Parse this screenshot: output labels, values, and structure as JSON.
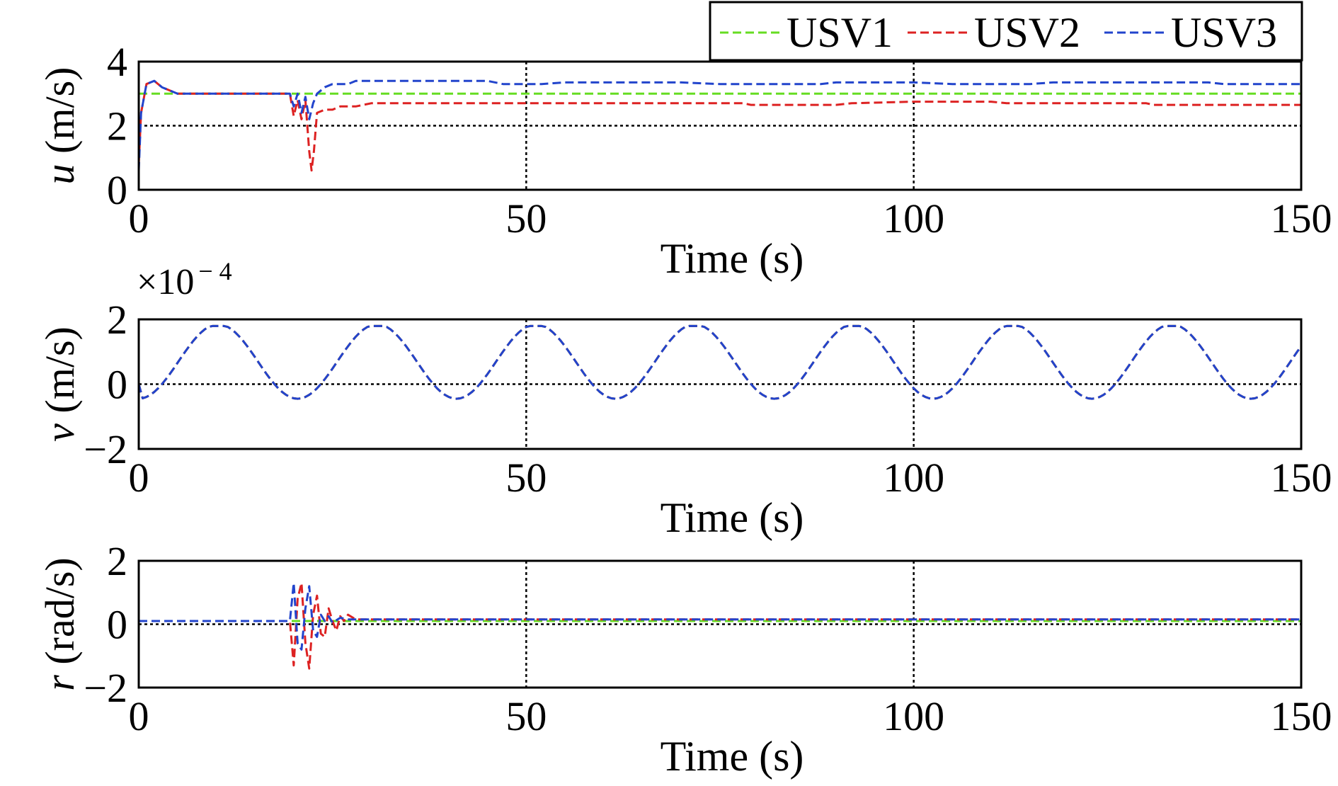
{
  "legend": {
    "placement": "top-right",
    "entries": [
      {
        "name": "USV1",
        "color": "#66dd22"
      },
      {
        "name": "USV2",
        "color": "#dd2222"
      },
      {
        "name": "USV3",
        "color": "#2244cc"
      }
    ]
  },
  "chart_data": [
    {
      "type": "line",
      "ylabel_symbol": "u",
      "ylabel_unit": "(m/s)",
      "xlabel": "Time (s)",
      "xlim": [
        0,
        150
      ],
      "ylim": [
        0,
        4
      ],
      "xticks": [
        "0",
        "50",
        "100",
        "150"
      ],
      "yticks": [
        "0",
        "2",
        "4"
      ],
      "reference_y": 2,
      "grid_x": [
        50,
        100
      ],
      "series": [
        {
          "name": "USV1",
          "color": "#66dd22",
          "points": [
            [
              0,
              3
            ],
            [
              150,
              3
            ]
          ]
        },
        {
          "name": "USV2",
          "color": "#dd2222",
          "points": [
            [
              0,
              0.8
            ],
            [
              0.3,
              2.4
            ],
            [
              1,
              3.3
            ],
            [
              2,
              3.4
            ],
            [
              3,
              3.2
            ],
            [
              5,
              3
            ],
            [
              19.5,
              3
            ],
            [
              20,
              2.3
            ],
            [
              20.5,
              2.8
            ],
            [
              21,
              2.2
            ],
            [
              21.5,
              2.8
            ],
            [
              22,
              1.2
            ],
            [
              22.3,
              0.6
            ],
            [
              22.6,
              1.2
            ],
            [
              23,
              2.4
            ],
            [
              24,
              2.5
            ],
            [
              25,
              2.5
            ],
            [
              26,
              2.6
            ],
            [
              28,
              2.6
            ],
            [
              30,
              2.7
            ],
            [
              50,
              2.7
            ],
            [
              52,
              2.7
            ],
            [
              70,
              2.7
            ],
            [
              78,
              2.7
            ],
            [
              79,
              2.65
            ],
            [
              90,
              2.65
            ],
            [
              92,
              2.7
            ],
            [
              100,
              2.75
            ],
            [
              110,
              2.75
            ],
            [
              112,
              2.7
            ],
            [
              130,
              2.7
            ],
            [
              131,
              2.65
            ],
            [
              150,
              2.65
            ]
          ]
        },
        {
          "name": "USV3",
          "color": "#2244cc",
          "points": [
            [
              0,
              0.6
            ],
            [
              0.3,
              2.4
            ],
            [
              1,
              3.3
            ],
            [
              2,
              3.4
            ],
            [
              3,
              3.2
            ],
            [
              5,
              3
            ],
            [
              19.5,
              3
            ],
            [
              20,
              2.6
            ],
            [
              20.5,
              3.0
            ],
            [
              21,
              2.4
            ],
            [
              21.5,
              2.9
            ],
            [
              22,
              2.2
            ],
            [
              22.5,
              2.7
            ],
            [
              23,
              3.0
            ],
            [
              24,
              3.2
            ],
            [
              25,
              3.3
            ],
            [
              27,
              3.3
            ],
            [
              28,
              3.4
            ],
            [
              45,
              3.4
            ],
            [
              47,
              3.3
            ],
            [
              52,
              3.3
            ],
            [
              55,
              3.35
            ],
            [
              70,
              3.35
            ],
            [
              75,
              3.3
            ],
            [
              88,
              3.3
            ],
            [
              90,
              3.35
            ],
            [
              100,
              3.35
            ],
            [
              105,
              3.3
            ],
            [
              115,
              3.3
            ],
            [
              118,
              3.35
            ],
            [
              138,
              3.35
            ],
            [
              140,
              3.3
            ],
            [
              150,
              3.3
            ]
          ]
        }
      ]
    },
    {
      "type": "line",
      "ylabel_symbol": "v",
      "ylabel_unit": "(m/s)",
      "xlabel": "Time (s)",
      "multiplier": "×10",
      "multiplier_exp": "− 4",
      "xlim": [
        0,
        150
      ],
      "ylim": [
        -2,
        2
      ],
      "xticks": [
        "0",
        "50",
        "100",
        "150"
      ],
      "yticks": [
        "−2",
        "0",
        "2"
      ],
      "reference_y": 0,
      "grid_x": [
        50,
        100
      ],
      "wave": {
        "period": 20.5,
        "max": 1.85,
        "min": -0.45,
        "phase_offset": 0
      },
      "series": [
        {
          "name": "USV1",
          "color": "#66dd22"
        },
        {
          "name": "USV2",
          "color": "#dd2222"
        },
        {
          "name": "USV3",
          "color": "#2244cc"
        }
      ]
    },
    {
      "type": "line",
      "ylabel_symbol": "r",
      "ylabel_unit": "(rad/s)",
      "xlabel": "Time (s)",
      "xlim": [
        0,
        150
      ],
      "ylim": [
        -2,
        2
      ],
      "xticks": [
        "0",
        "50",
        "100",
        "150"
      ],
      "yticks": [
        "−2",
        "0",
        "2"
      ],
      "reference_y": 0,
      "grid_x": [
        50,
        100
      ],
      "series": [
        {
          "name": "USV1",
          "color": "#66dd22",
          "points": [
            [
              0,
              0.1
            ],
            [
              150,
              0.1
            ]
          ]
        },
        {
          "name": "USV2",
          "color": "#dd2222",
          "points": [
            [
              0,
              0.1
            ],
            [
              19.5,
              0.1
            ],
            [
              20,
              -1.3
            ],
            [
              20.5,
              0.8
            ],
            [
              21,
              1.3
            ],
            [
              21.5,
              -0.6
            ],
            [
              22,
              -1.4
            ],
            [
              22.5,
              0.3
            ],
            [
              23,
              0.9
            ],
            [
              23.5,
              -0.3
            ],
            [
              24,
              -0.4
            ],
            [
              24.5,
              0.5
            ],
            [
              25,
              0.1
            ],
            [
              25.5,
              -0.2
            ],
            [
              26,
              0.25
            ],
            [
              26.5,
              0.1
            ],
            [
              27,
              0.3
            ],
            [
              28,
              0.15
            ],
            [
              150,
              0.15
            ]
          ]
        },
        {
          "name": "USV3",
          "color": "#2244cc",
          "points": [
            [
              0,
              0.1
            ],
            [
              19.5,
              0.1
            ],
            [
              20,
              1.3
            ],
            [
              20.5,
              -0.6
            ],
            [
              21,
              -0.8
            ],
            [
              21.5,
              0.5
            ],
            [
              22,
              1.2
            ],
            [
              22.5,
              -0.2
            ],
            [
              23,
              -0.4
            ],
            [
              23.5,
              0.3
            ],
            [
              24,
              0.1
            ],
            [
              24.5,
              0.25
            ],
            [
              25,
              0.05
            ],
            [
              26,
              0.2
            ],
            [
              27,
              0.15
            ],
            [
              150,
              0.15
            ]
          ]
        }
      ]
    }
  ]
}
